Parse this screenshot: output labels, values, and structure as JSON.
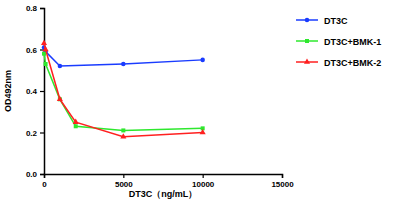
{
  "chart_data": {
    "type": "line",
    "x_label": "DT3C（ng/mL）",
    "y_label": "OD492nm",
    "xlim": [
      0,
      15000
    ],
    "xticks": [
      0,
      5000,
      10000,
      15000
    ],
    "ylim": [
      0,
      0.8
    ],
    "yticks": [
      {
        "value": 0,
        "label": "0.0"
      },
      0.2,
      0.4,
      0.6,
      0.8
    ],
    "grid": false,
    "legend": "right",
    "series": [
      {
        "name": "DT3C",
        "color": "#1a3cff",
        "marker": "circle",
        "x": [
          0,
          100,
          1000,
          5000,
          10000
        ],
        "values": [
          0.61,
          0.59,
          0.52,
          0.53,
          0.55
        ]
      },
      {
        "name": "DT3C+BMK-1",
        "color": "#2ee82e",
        "marker": "square",
        "x": [
          0,
          100,
          1000,
          2000,
          5000,
          10000
        ],
        "values": [
          0.58,
          0.53,
          0.36,
          0.23,
          0.21,
          0.22
        ]
      },
      {
        "name": "DT3C+BMK-2",
        "color": "#ff2020",
        "marker": "triangle",
        "x": [
          0,
          100,
          1000,
          2000,
          5000,
          10000
        ],
        "values": [
          0.63,
          0.6,
          0.36,
          0.25,
          0.18,
          0.2
        ]
      }
    ]
  }
}
